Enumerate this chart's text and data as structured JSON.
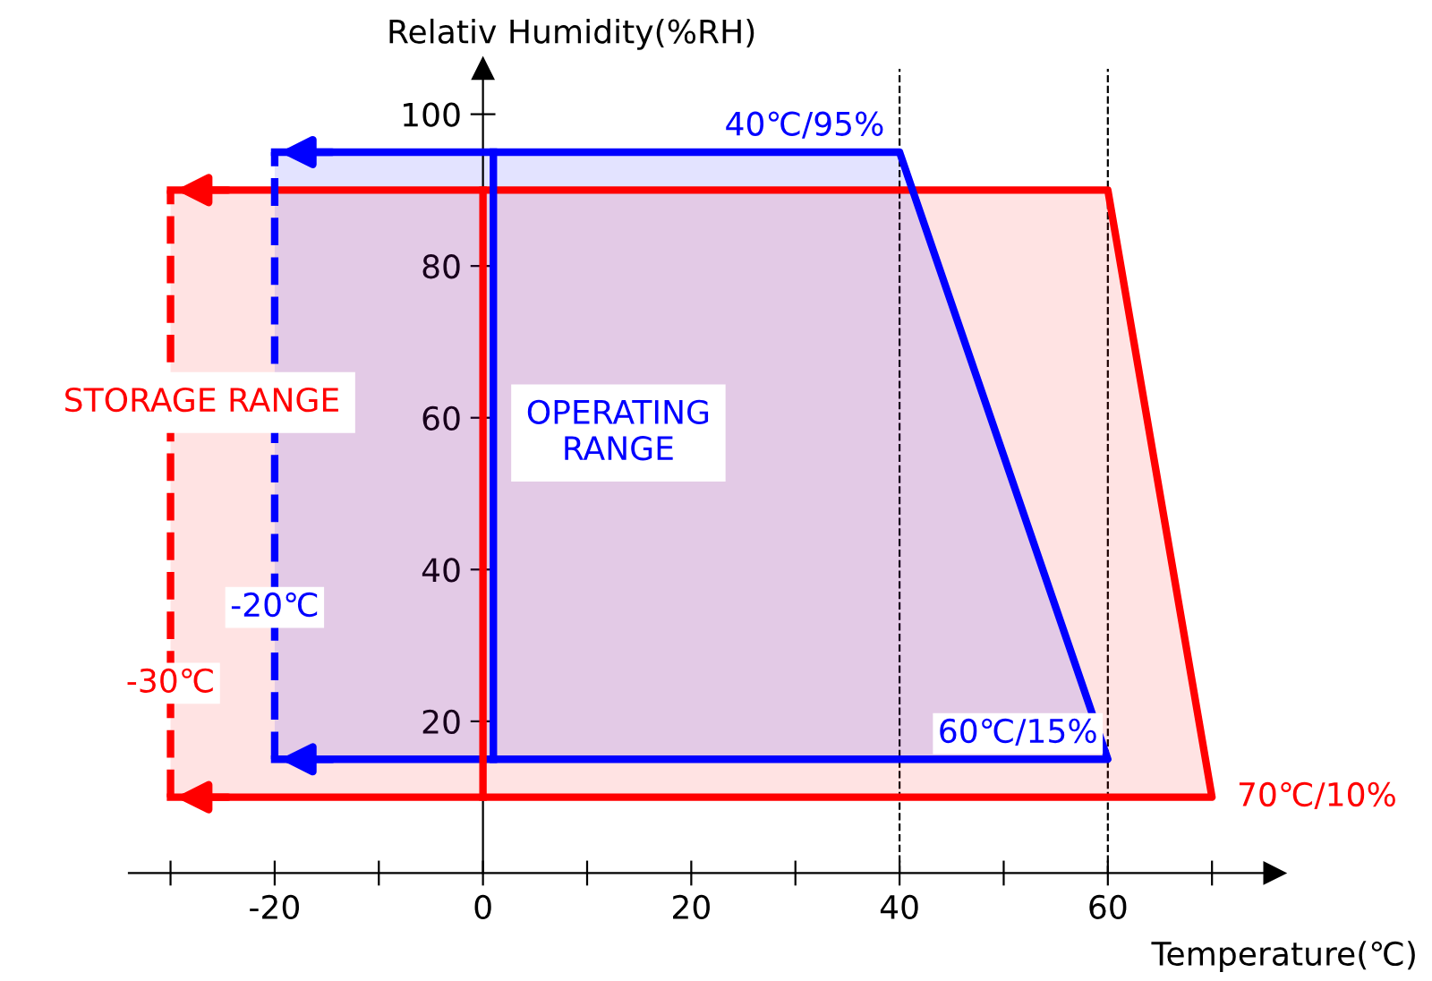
{
  "chart_data": {
    "type": "area",
    "xlabel": "Temperature(℃)",
    "ylabel": "Relativ Humidity(%RH)",
    "xlim": [
      -34,
      76
    ],
    "ylim": [
      0,
      106
    ],
    "xticks": [
      {
        "value": -30,
        "label": null
      },
      -20,
      {
        "value": -10,
        "label": null
      },
      0,
      {
        "value": 10,
        "label": null
      },
      20,
      {
        "value": 30,
        "label": null
      },
      40,
      {
        "value": 50,
        "label": null
      },
      60,
      {
        "value": 70,
        "label": null
      }
    ],
    "yticks": [
      20,
      40,
      60,
      80,
      100
    ],
    "grid": false,
    "series": [
      {
        "color": "#ff0000",
        "x": [
          -30,
          60,
          70,
          -30
        ],
        "values": [
          90,
          90,
          10,
          10
        ]
      },
      {
        "color": "#0000ff",
        "x": [
          -20,
          40,
          60,
          -20
        ],
        "values": [
          95,
          95,
          15,
          15
        ]
      },
      {
        "type": "line",
        "color": "#ff0000",
        "x": [
          -30,
          -30
        ],
        "values": [
          10,
          90
        ],
        "line_style": "dashed"
      },
      {
        "type": "line",
        "color": "#0000ff",
        "x": [
          -20,
          -20
        ],
        "values": [
          15,
          95
        ],
        "line_style": "dashed"
      },
      {
        "type": "line",
        "color": "#ff0000",
        "x": [
          0,
          0
        ],
        "values": [
          10,
          90
        ]
      },
      {
        "type": "line",
        "color": "#0000ff",
        "x": [
          1,
          1
        ],
        "values": [
          15,
          95
        ]
      }
    ],
    "ref_lines": [
      {
        "axis": "x",
        "value": 40,
        "color": "#000000",
        "line_style": "dashed"
      },
      {
        "axis": "x",
        "value": 60,
        "color": "#000000",
        "line_style": "dashed"
      }
    ],
    "annotations": [
      {
        "text": "40℃/95%",
        "x": 40,
        "y": 95
      },
      {
        "text": "60℃/15%",
        "x": 60,
        "y": 15
      },
      {
        "text": "70℃/10%",
        "x": 70,
        "y": 10
      },
      {
        "text": "-20℃",
        "x": -20,
        "y": 35
      },
      {
        "text": "-30℃",
        "x": -30,
        "y": 25
      },
      "STORAGE RANGE",
      "OPERATING\nRANGE"
    ]
  }
}
